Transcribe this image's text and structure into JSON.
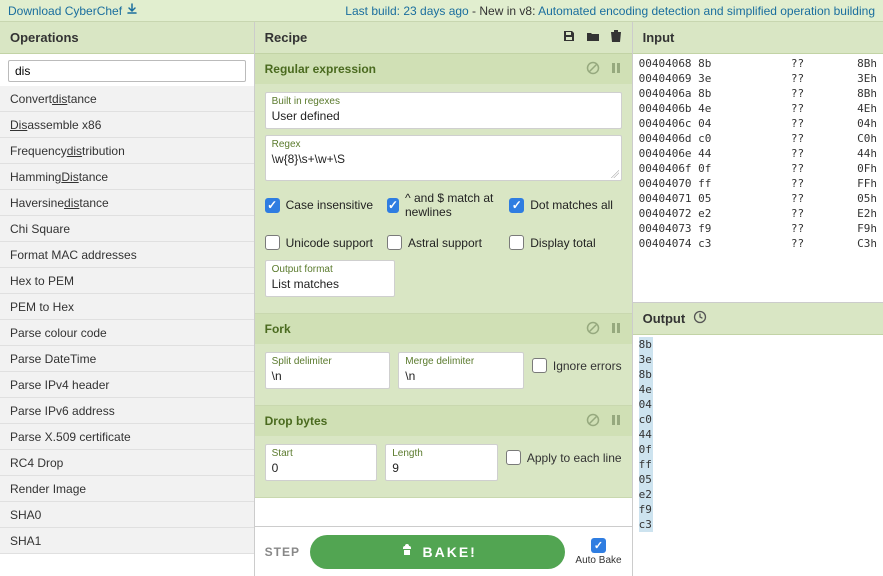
{
  "topbar": {
    "download_label": "Download CyberChef",
    "news_prefix": "Last build: 23 days ago",
    "news_mid": " - New in v8: ",
    "news_a": "Automated encoding detection",
    "news_and": " and ",
    "news_b": "simplified operation building"
  },
  "operations": {
    "title": "Operations",
    "search_value": "dis",
    "items": [
      "Convert <u>dis</u>tance",
      "<u>Dis</u>assemble x86",
      "Frequency <u>dis</u>tribution",
      "Hamming <u>Dis</u>tance",
      "Haversine <u>dis</u>tance",
      "Chi Square",
      "Format MAC addresses",
      "Hex to PEM",
      "PEM to Hex",
      "Parse colour code",
      "Parse DateTime",
      "Parse IPv4 header",
      "Parse IPv6 address",
      "Parse X.509 certificate",
      "RC4 Drop",
      "Render Image",
      "SHA0",
      "SHA1"
    ]
  },
  "recipe": {
    "title": "Recipe",
    "ops": {
      "regex": {
        "title": "Regular expression",
        "builtins_label": "Built in regexes",
        "builtins_value": "User defined",
        "regex_label": "Regex",
        "regex_value": "\\w{8}\\s+\\w+\\S",
        "checks": {
          "case_insensitive": {
            "label": "Case insensitive",
            "checked": true
          },
          "multiline": {
            "label": "^ and $ match at newlines",
            "checked": true
          },
          "dotall": {
            "label": "Dot matches all",
            "checked": true
          },
          "unicode": {
            "label": "Unicode support",
            "checked": false
          },
          "astral": {
            "label": "Astral support",
            "checked": false
          },
          "display_total": {
            "label": "Display total",
            "checked": false
          }
        },
        "output_format_label": "Output format",
        "output_format_value": "List matches"
      },
      "fork": {
        "title": "Fork",
        "split_label": "Split delimiter",
        "split_value": "\\n",
        "merge_label": "Merge delimiter",
        "merge_value": "\\n",
        "ignore_label": "Ignore errors",
        "ignore_checked": false
      },
      "drop": {
        "title": "Drop bytes",
        "start_label": "Start",
        "start_value": "0",
        "length_label": "Length",
        "length_value": "9",
        "each_label": "Apply to each line",
        "each_checked": false
      }
    },
    "footer": {
      "step_label": "STEP",
      "bake_label": "BAKE!",
      "autobake_label": "Auto Bake",
      "autobake_checked": true
    }
  },
  "io": {
    "input_title": "Input",
    "output_title": "Output",
    "input_rows": [
      [
        "00404068",
        "8b",
        "??",
        "8Bh"
      ],
      [
        "00404069",
        "3e",
        "??",
        "3Eh"
      ],
      [
        "0040406a",
        "8b",
        "??",
        "8Bh"
      ],
      [
        "0040406b",
        "4e",
        "??",
        "4Eh"
      ],
      [
        "0040406c",
        "04",
        "??",
        "04h"
      ],
      [
        "0040406d",
        "c0",
        "??",
        "C0h"
      ],
      [
        "0040406e",
        "44",
        "??",
        "44h"
      ],
      [
        "0040406f",
        "0f",
        "??",
        "0Fh"
      ],
      [
        "00404070",
        "ff",
        "??",
        "FFh"
      ],
      [
        "00404071",
        "05",
        "??",
        "05h"
      ],
      [
        "00404072",
        "e2",
        "??",
        "E2h"
      ],
      [
        "00404073",
        "f9",
        "??",
        "F9h"
      ],
      [
        "00404074",
        "c3",
        "??",
        "C3h"
      ]
    ],
    "output_bytes": [
      "8b",
      "3e",
      "8b",
      "4e",
      "04",
      "c0",
      "44",
      "0f",
      "ff",
      "05",
      "e2",
      "f9",
      "c3"
    ]
  }
}
